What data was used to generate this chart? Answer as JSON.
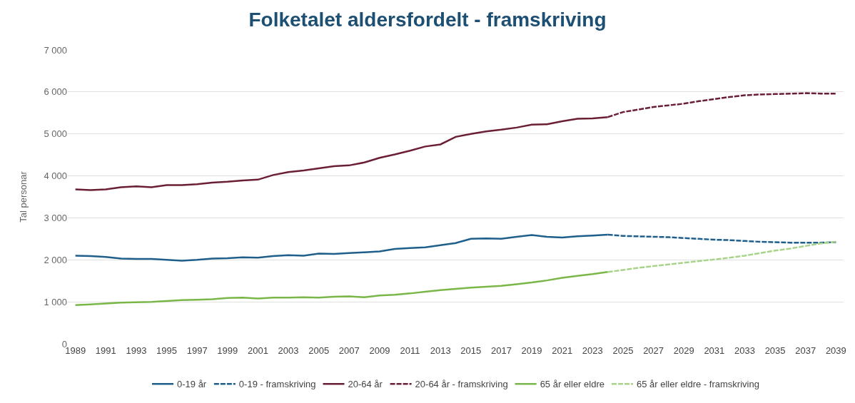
{
  "chart_data": {
    "type": "line",
    "title": "Folketalet aldersfordelt - framskriving",
    "ylabel": "Tal personar",
    "xlim": [
      1988.5,
      2039.5
    ],
    "xticks": [
      1989,
      1991,
      1993,
      1995,
      1997,
      1999,
      2001,
      2003,
      2005,
      2007,
      2009,
      2011,
      2013,
      2015,
      2017,
      2019,
      2021,
      2023,
      2025,
      2027,
      2029,
      2031,
      2033,
      2035,
      2037,
      2039
    ],
    "ylim": [
      0,
      7000
    ],
    "yticks": [
      0,
      {
        "value": 1000,
        "label": "1 000"
      },
      {
        "value": 2000,
        "label": "2 000"
      },
      {
        "value": 3000,
        "label": "3 000"
      },
      {
        "value": 4000,
        "label": "4 000"
      },
      {
        "value": 5000,
        "label": "5 000"
      },
      {
        "value": 6000,
        "label": "6 000"
      },
      {
        "value": 7000,
        "label": "7 000"
      }
    ],
    "grid": "y",
    "legend": "bottom",
    "marker": "none",
    "series": [
      {
        "name": "0-19 år",
        "color": "#1f5f8b",
        "line_style": "solid",
        "x": [
          1989,
          1990,
          1991,
          1992,
          1993,
          1994,
          1995,
          1996,
          1997,
          1998,
          1999,
          2000,
          2001,
          2002,
          2003,
          2004,
          2005,
          2006,
          2007,
          2008,
          2009,
          2010,
          2011,
          2012,
          2013,
          2014,
          2015,
          2016,
          2017,
          2018,
          2019,
          2020,
          2021,
          2022,
          2023,
          2024
        ],
        "values": [
          2100,
          2090,
          2070,
          2030,
          2020,
          2020,
          2000,
          1980,
          2000,
          2030,
          2040,
          2060,
          2050,
          2090,
          2110,
          2100,
          2150,
          2140,
          2160,
          2180,
          2200,
          2260,
          2280,
          2300,
          2350,
          2400,
          2500,
          2510,
          2500,
          2550,
          2590,
          2550,
          2530,
          2560,
          2580,
          2600
        ]
      },
      {
        "name": "0-19 - framskriving",
        "color": "#1f5f8b",
        "line_style": "dashed",
        "x": [
          2024,
          2025,
          2026,
          2027,
          2028,
          2029,
          2030,
          2031,
          2032,
          2033,
          2034,
          2035,
          2036,
          2037,
          2038,
          2039
        ],
        "values": [
          2600,
          2570,
          2560,
          2550,
          2540,
          2520,
          2500,
          2480,
          2470,
          2450,
          2430,
          2420,
          2410,
          2410,
          2410,
          2420
        ]
      },
      {
        "name": "20-64 år",
        "color": "#6b1f35",
        "line_style": "solid",
        "x": [
          1989,
          1990,
          1991,
          1992,
          1993,
          1994,
          1995,
          1996,
          1997,
          1998,
          1999,
          2000,
          2001,
          2002,
          2003,
          2004,
          2005,
          2006,
          2007,
          2008,
          2009,
          2010,
          2011,
          2012,
          2013,
          2014,
          2015,
          2016,
          2017,
          2018,
          2019,
          2020,
          2021,
          2022,
          2023,
          2024
        ],
        "values": [
          3680,
          3660,
          3680,
          3730,
          3750,
          3730,
          3780,
          3780,
          3800,
          3840,
          3860,
          3890,
          3910,
          4020,
          4090,
          4130,
          4180,
          4230,
          4250,
          4320,
          4430,
          4510,
          4600,
          4700,
          4750,
          4930,
          5000,
          5060,
          5100,
          5150,
          5220,
          5230,
          5300,
          5360,
          5370,
          5400
        ]
      },
      {
        "name": "20-64 år - framskriving",
        "color": "#6b1f35",
        "line_style": "dashed",
        "x": [
          2024,
          2025,
          2026,
          2027,
          2028,
          2029,
          2030,
          2031,
          2032,
          2033,
          2034,
          2035,
          2036,
          2037,
          2038,
          2039
        ],
        "values": [
          5400,
          5520,
          5580,
          5640,
          5680,
          5720,
          5780,
          5830,
          5880,
          5920,
          5940,
          5950,
          5960,
          5970,
          5960,
          5960
        ]
      },
      {
        "name": "65 år eller eldre",
        "color": "#7ab648",
        "line_style": "solid",
        "x": [
          1989,
          1990,
          1991,
          1992,
          1993,
          1994,
          1995,
          1996,
          1997,
          1998,
          1999,
          2000,
          2001,
          2002,
          2003,
          2004,
          2005,
          2006,
          2007,
          2008,
          2009,
          2010,
          2011,
          2012,
          2013,
          2014,
          2015,
          2016,
          2017,
          2018,
          2019,
          2020,
          2021,
          2022,
          2023,
          2024
        ],
        "values": [
          920,
          940,
          960,
          980,
          990,
          1000,
          1020,
          1040,
          1050,
          1060,
          1090,
          1100,
          1080,
          1100,
          1100,
          1110,
          1100,
          1120,
          1130,
          1110,
          1150,
          1170,
          1200,
          1240,
          1280,
          1310,
          1340,
          1360,
          1380,
          1420,
          1460,
          1510,
          1570,
          1620,
          1660,
          1710
        ]
      },
      {
        "name": "65 år eller eldre - framskriving",
        "color": "#a8d48a",
        "line_style": "dashed",
        "x": [
          2024,
          2025,
          2026,
          2027,
          2028,
          2029,
          2030,
          2031,
          2032,
          2033,
          2034,
          2035,
          2036,
          2037,
          2038,
          2039
        ],
        "values": [
          1710,
          1760,
          1810,
          1850,
          1890,
          1930,
          1970,
          2010,
          2050,
          2100,
          2160,
          2220,
          2270,
          2330,
          2390,
          2430
        ]
      }
    ]
  }
}
